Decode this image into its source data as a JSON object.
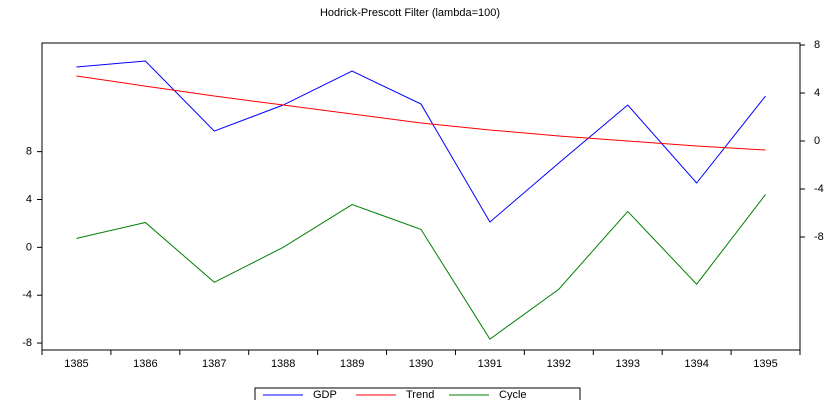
{
  "chart_data": {
    "type": "line",
    "title": "Hodrick-Prescott Filter (lambda=100)",
    "categories": [
      "1385",
      "1386",
      "1387",
      "1388",
      "1389",
      "1390",
      "1391",
      "1392",
      "1393",
      "1394",
      "1395"
    ],
    "series": [
      {
        "name": "GDP",
        "color": "#0000ff",
        "axis": "y2",
        "values": [
          6.17,
          6.67,
          0.83,
          3.0,
          5.83,
          3.08,
          -6.75,
          -1.83,
          3.0,
          -3.5,
          3.75
        ]
      },
      {
        "name": "Trend",
        "color": "#ff0000",
        "axis": "y2",
        "values": [
          5.42,
          4.58,
          3.75,
          3.0,
          2.25,
          1.5,
          0.92,
          0.42,
          0.0,
          -0.42,
          -0.75
        ]
      },
      {
        "name": "Cycle",
        "color": "#008000",
        "values": [
          0.75,
          2.08,
          -2.92,
          0,
          3.58,
          1.5,
          -7.67,
          -3.5,
          3.0,
          -3.08,
          4.42
        ]
      }
    ],
    "ylim": [
      -8.58,
      17.08
    ],
    "yticks": [
      -8,
      -4,
      0,
      4,
      8
    ],
    "y2lim": [
      -17.42,
      8.17
    ],
    "y2ticks": [
      -8,
      -4,
      0,
      4,
      8
    ],
    "legend": "bottom"
  }
}
